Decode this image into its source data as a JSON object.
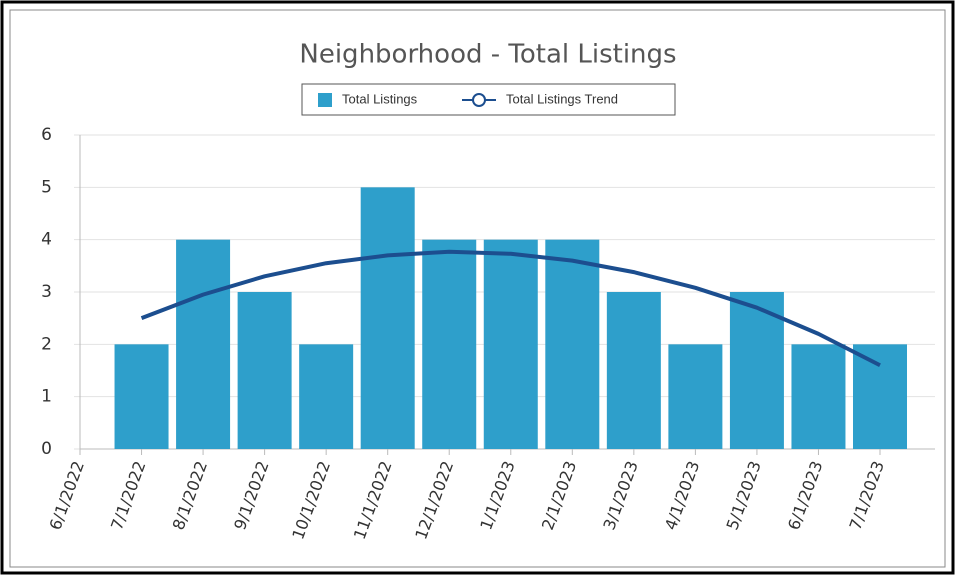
{
  "chart_data": {
    "type": "bar",
    "title": "Neighborhood - Total Listings",
    "categories": [
      "6/1/2022",
      "7/1/2022",
      "8/1/2022",
      "9/1/2022",
      "10/1/2022",
      "11/1/2022",
      "12/1/2022",
      "1/1/2023",
      "2/1/2023",
      "3/1/2023",
      "4/1/2023",
      "5/1/2023",
      "6/1/2023",
      "7/1/2023"
    ],
    "series": [
      {
        "name": "Total Listings",
        "type": "bar",
        "color": "#2e9fcb",
        "values": [
          null,
          2,
          4,
          3,
          2,
          5,
          4,
          4,
          4,
          3,
          2,
          3,
          2,
          2
        ]
      },
      {
        "name": "Total Listings Trend",
        "type": "line",
        "color": "#1c4e8f",
        "values": [
          null,
          2.5,
          2.95,
          3.3,
          3.55,
          3.7,
          3.77,
          3.73,
          3.6,
          3.38,
          3.08,
          2.7,
          2.2,
          1.6
        ]
      }
    ],
    "ylim": [
      0,
      6
    ],
    "yticks": [
      0,
      1,
      2,
      3,
      4,
      5,
      6
    ],
    "grid": true,
    "legend": "top"
  }
}
